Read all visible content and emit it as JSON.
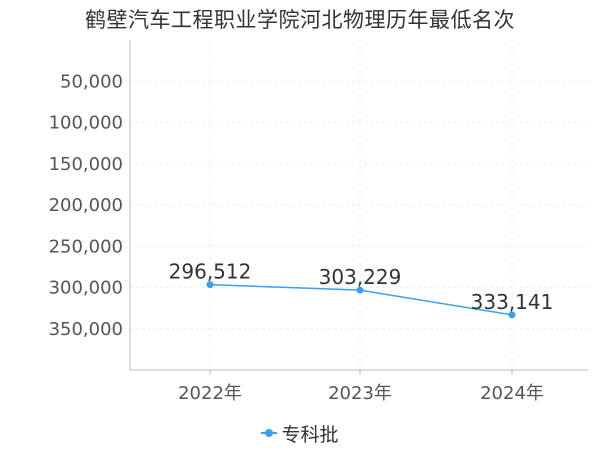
{
  "title": "鹤壁汽车工程职业学院河北物理历年最低名次",
  "colors": {
    "series": "#3aa0f0",
    "grid": "#eeeeee",
    "axis": "#bbbbbb"
  },
  "chart_data": {
    "type": "line",
    "title": "鹤壁汽车工程职业学院河北物理历年最低名次",
    "categories": [
      "2022年",
      "2023年",
      "2024年"
    ],
    "series": [
      {
        "name": "专科批",
        "values": [
          296512,
          303229,
          333141
        ],
        "labels": [
          "296,512",
          "303,229",
          "333,141"
        ]
      }
    ],
    "y_ticks": [
      50000,
      100000,
      150000,
      200000,
      250000,
      300000,
      350000
    ],
    "y_tick_labels": [
      "50,000",
      "100,000",
      "150,000",
      "200,000",
      "250,000",
      "300,000",
      "350,000"
    ],
    "ylim": [
      0,
      400000
    ],
    "y_inverted": true,
    "grid": true,
    "legend_position": "bottom"
  }
}
